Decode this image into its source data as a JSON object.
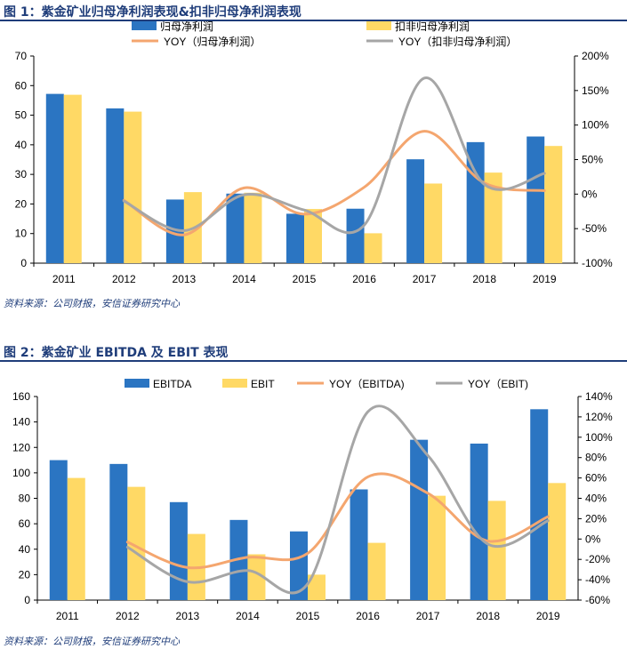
{
  "figures": [
    {
      "title": "图 1：紫金矿业归母净利润表现&扣非归母净利润表现",
      "source": "资料来源：公司财报，安信证券研究中心",
      "chart_data": {
        "type": "bar",
        "categories": [
          "2011",
          "2012",
          "2013",
          "2014",
          "2015",
          "2016",
          "2017",
          "2018",
          "2019"
        ],
        "bar_series": [
          {
            "name": "归母净利润",
            "color": "#2b75c2",
            "values": [
              57.2,
              52.3,
              21.5,
              23.5,
              16.7,
              18.4,
              35.1,
              40.9,
              42.8
            ]
          },
          {
            "name": "扣非归母净利润",
            "color": "#ffd965",
            "values": [
              56.9,
              51.2,
              24.0,
              23.8,
              18.3,
              10.1,
              26.9,
              30.6,
              39.6
            ]
          }
        ],
        "line_series": [
          {
            "name": "YOY（归母净利润）",
            "color": "#f4a66f",
            "values": [
              null,
              -9,
              -59,
              9,
              -29,
              10,
              91,
              16,
              5
            ]
          },
          {
            "name": "YOY（扣非归母净利润）",
            "color": "#a6a6a6",
            "values": [
              null,
              -10,
              -53,
              -1,
              -23,
              -45,
              168,
              14,
              30
            ]
          }
        ],
        "y_left": {
          "min": 0,
          "max": 70,
          "ticks": [
            "0",
            "10",
            "20",
            "30",
            "40",
            "50",
            "60",
            "70"
          ]
        },
        "y_right": {
          "min": -100,
          "max": 200,
          "ticks": [
            "-100%",
            "-50%",
            "0%",
            "50%",
            "100%",
            "150%",
            "200%"
          ]
        },
        "legend_placement": "top",
        "grid": false
      }
    },
    {
      "title": "图 2：紫金矿业 EBITDA 及 EBIT 表现",
      "source": "资料来源：公司财报，安信证券研究中心",
      "chart_data": {
        "type": "bar",
        "categories": [
          "2011",
          "2012",
          "2013",
          "2014",
          "2015",
          "2016",
          "2017",
          "2018",
          "2019"
        ],
        "bar_series": [
          {
            "name": "EBITDA",
            "color": "#2b75c2",
            "values": [
              110,
              107,
              77,
              63,
              54,
              87,
              126,
              123,
              150
            ]
          },
          {
            "name": "EBIT",
            "color": "#ffd965",
            "values": [
              96,
              89,
              52,
              36,
              20,
              45,
              82,
              78,
              92
            ]
          }
        ],
        "line_series": [
          {
            "name": "YOY（EBITDA)",
            "color": "#f4a66f",
            "values": [
              null,
              -3,
              -28,
              -18,
              -14,
              61,
              45,
              -2,
              22
            ]
          },
          {
            "name": "YOY（EBIT)",
            "color": "#a6a6a6",
            "values": [
              null,
              -8,
              -42,
              -31,
              -44,
              125,
              82,
              -5,
              18
            ]
          }
        ],
        "y_left": {
          "min": 0,
          "max": 160,
          "ticks": [
            "0",
            "20",
            "40",
            "60",
            "80",
            "100",
            "120",
            "140",
            "160"
          ]
        },
        "y_right": {
          "min": -60,
          "max": 140,
          "ticks": [
            "-60%",
            "-40%",
            "-20%",
            "0%",
            "20%",
            "40%",
            "60%",
            "80%",
            "100%",
            "120%",
            "140%"
          ]
        },
        "legend_placement": "top",
        "grid": false
      }
    }
  ]
}
